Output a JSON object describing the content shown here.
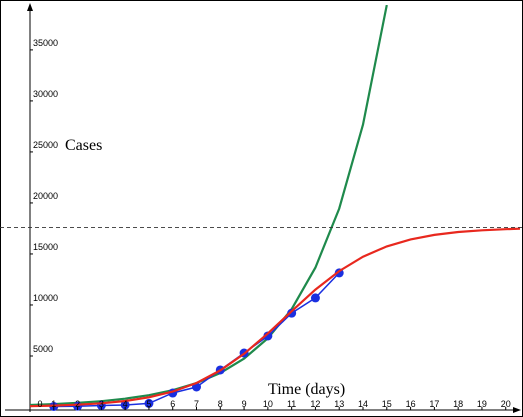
{
  "chart_data": {
    "type": "line",
    "xlabel": "Time (days)",
    "ylabel": "Cases",
    "xlim": [
      0,
      20.6
    ],
    "ylim": [
      0,
      39400
    ],
    "xticks": [
      0,
      1,
      2,
      3,
      4,
      5,
      6,
      7,
      8,
      9,
      10,
      11,
      12,
      13,
      14,
      15,
      16,
      17,
      18,
      19,
      20
    ],
    "yticks": [
      5000,
      10000,
      15000,
      20000,
      25000,
      30000,
      35000
    ],
    "reference_line": {
      "y": 17600,
      "dashed": true,
      "color": "#333333"
    },
    "series": [
      {
        "color": "#1f8a4c",
        "markers": false,
        "x": [
          0,
          1,
          2,
          3,
          4,
          5,
          6,
          7,
          8,
          9,
          10,
          11,
          12,
          13,
          14,
          15
        ],
        "values": [
          198,
          281,
          400,
          570,
          811,
          1155,
          1643,
          2339,
          3329,
          4739,
          6745,
          9600,
          13664,
          19448,
          27680,
          39400
        ]
      },
      {
        "color": "#1a2fe0",
        "markers": true,
        "x": [
          1,
          2,
          3,
          4,
          5,
          6,
          7,
          8,
          9,
          10,
          11,
          12,
          13
        ],
        "values": [
          50,
          80,
          150,
          200,
          350,
          1370,
          1960,
          3630,
          5290,
          6960,
          9200,
          10690,
          13140
        ]
      },
      {
        "color": "#e8281e",
        "markers": false,
        "x": [
          0,
          1,
          2,
          3,
          4,
          5,
          6,
          7,
          8,
          9,
          10,
          11,
          12,
          13,
          14,
          15,
          16,
          17,
          18,
          19,
          20,
          20.6
        ],
        "values": [
          82,
          135,
          221,
          361,
          589,
          948,
          1512,
          2357,
          3585,
          5215,
          7213,
          9392,
          11503,
          13323,
          14728,
          15740,
          16423,
          16866,
          17147,
          17323,
          17431,
          17480
        ]
      }
    ]
  }
}
